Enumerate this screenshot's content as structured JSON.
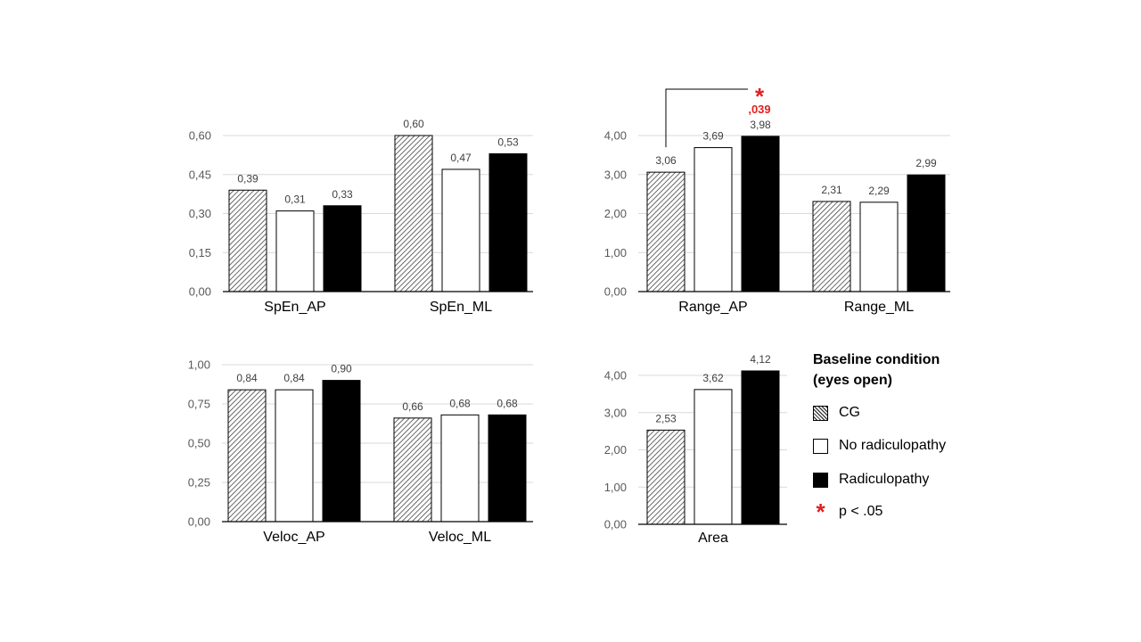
{
  "legend": {
    "title_line1": "Baseline condition",
    "title_line2": "(eyes open)",
    "items": [
      {
        "label": "CG",
        "icon": "hatched-swatch"
      },
      {
        "label": "No radiculopathy",
        "icon": "white-swatch"
      },
      {
        "label": "Radiculopathy",
        "icon": "black-swatch"
      },
      {
        "label": "p < .05",
        "icon": "asterisk-icon"
      }
    ]
  },
  "colors": {
    "cg_hatch": "#444444",
    "no_radiculopathy": "#ffffff",
    "radiculopathy": "#000000",
    "significance": "#e02020",
    "grid": "#d9d9d9",
    "axis": "#000000"
  },
  "chart_data": [
    {
      "type": "bar",
      "categories": [
        "SpEn_AP",
        "SpEn_ML"
      ],
      "series": [
        {
          "name": "CG",
          "values": [
            0.39,
            0.6
          ],
          "labels": [
            "0,39",
            "0,60"
          ]
        },
        {
          "name": "No radiculopathy",
          "values": [
            0.31,
            0.47
          ],
          "labels": [
            "0,31",
            "0,47"
          ]
        },
        {
          "name": "Radiculopathy",
          "values": [
            0.33,
            0.53
          ],
          "labels": [
            "0,33",
            "0,53"
          ]
        }
      ],
      "ylim": [
        0,
        0.6
      ],
      "yticks": [
        "0,00",
        "0,15",
        "0,30",
        "0,45",
        "0,60"
      ],
      "grid": true
    },
    {
      "type": "bar",
      "categories": [
        "Range_AP",
        "Range_ML"
      ],
      "series": [
        {
          "name": "CG",
          "values": [
            3.06,
            2.31
          ],
          "labels": [
            "3,06",
            "2,31"
          ]
        },
        {
          "name": "No radiculopathy",
          "values": [
            3.69,
            2.29
          ],
          "labels": [
            "3,69",
            "2,29"
          ]
        },
        {
          "name": "Radiculopathy",
          "values": [
            3.98,
            2.99
          ],
          "labels": [
            "3,98",
            "2,99"
          ]
        }
      ],
      "ylim": [
        0,
        4.0
      ],
      "yticks": [
        "0,00",
        "1,00",
        "2,00",
        "3,00",
        "4,00"
      ],
      "grid": true,
      "annotation": {
        "type": "significance",
        "between": [
          "CG",
          "Radiculopathy"
        ],
        "category": "Range_AP",
        "marker": "*",
        "text": ",039"
      }
    },
    {
      "type": "bar",
      "categories": [
        "Veloc_AP",
        "Veloc_ML"
      ],
      "series": [
        {
          "name": "CG",
          "values": [
            0.84,
            0.66
          ],
          "labels": [
            "0,84",
            "0,66"
          ]
        },
        {
          "name": "No radiculopathy",
          "values": [
            0.84,
            0.68
          ],
          "labels": [
            "0,84",
            "0,68"
          ]
        },
        {
          "name": "Radiculopathy",
          "values": [
            0.9,
            0.68
          ],
          "labels": [
            "0,90",
            "0,68"
          ]
        }
      ],
      "ylim": [
        0,
        1.0
      ],
      "yticks": [
        "0,00",
        "0,25",
        "0,50",
        "0,75",
        "1,00"
      ],
      "grid": true
    },
    {
      "type": "bar",
      "categories": [
        "Area"
      ],
      "series": [
        {
          "name": "CG",
          "values": [
            2.53
          ],
          "labels": [
            "2,53"
          ]
        },
        {
          "name": "No radiculopathy",
          "values": [
            3.62
          ],
          "labels": [
            "3,62"
          ]
        },
        {
          "name": "Radiculopathy",
          "values": [
            4.12
          ],
          "labels": [
            "4,12"
          ]
        }
      ],
      "ylim": [
        0,
        4.0
      ],
      "yticks": [
        "0,00",
        "1,00",
        "2,00",
        "3,00",
        "4,00"
      ],
      "grid": true
    }
  ]
}
